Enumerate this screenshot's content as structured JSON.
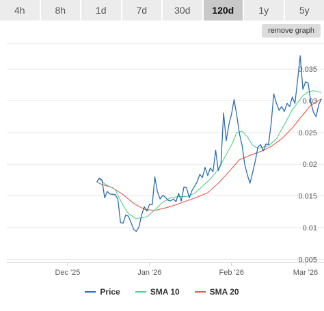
{
  "range_tabs": [
    {
      "label": "4h",
      "active": false
    },
    {
      "label": "8h",
      "active": false
    },
    {
      "label": "1d",
      "active": false
    },
    {
      "label": "7d",
      "active": false
    },
    {
      "label": "30d",
      "active": false
    },
    {
      "label": "120d",
      "active": true
    },
    {
      "label": "1y",
      "active": false
    },
    {
      "label": "5y",
      "active": false
    }
  ],
  "remove_graph_label": "remove graph",
  "colors": {
    "price": "#2b6cb0",
    "sma10": "#4cd08a",
    "sma20": "#e8554a",
    "grid": "#e6e6e6"
  },
  "chart_data": {
    "type": "line",
    "x_ticks": [
      "Dec '25",
      "Jan '26",
      "Feb '26",
      "Mar '26"
    ],
    "x_tick_dates": [
      "2025-12-01",
      "2026-01-01",
      "2026-02-01",
      "2026-03-01"
    ],
    "xlim": [
      "2025-11-08",
      "2026-03-08"
    ],
    "y_ticks": [
      "0.005",
      "0.01",
      "0.015",
      "0.02",
      "0.025",
      "0.03",
      "0.035"
    ],
    "ylim": [
      0.0045,
      0.039
    ],
    "grid": true,
    "legend_position": "bottom",
    "series": [
      {
        "name": "Price",
        "color_key": "price",
        "points": [
          [
            "2025-12-12",
            0.0172
          ],
          [
            "2025-12-13",
            0.0178
          ],
          [
            "2025-12-14",
            0.0175
          ],
          [
            "2025-12-15",
            0.0147
          ],
          [
            "2025-12-16",
            0.0157
          ],
          [
            "2025-12-17",
            0.0153
          ],
          [
            "2025-12-19",
            0.0152
          ],
          [
            "2025-12-20",
            0.0145
          ],
          [
            "2025-12-21",
            0.0108
          ],
          [
            "2025-12-22",
            0.0107
          ],
          [
            "2025-12-23",
            0.012
          ],
          [
            "2025-12-24",
            0.0118
          ],
          [
            "2025-12-25",
            0.0108
          ],
          [
            "2025-12-26",
            0.0097
          ],
          [
            "2025-12-27",
            0.0094
          ],
          [
            "2025-12-28",
            0.0101
          ],
          [
            "2025-12-29",
            0.012
          ],
          [
            "2025-12-30",
            0.0133
          ],
          [
            "2025-12-31",
            0.0126
          ],
          [
            "2026-01-01",
            0.0137
          ],
          [
            "2026-01-02",
            0.0136
          ],
          [
            "2026-01-03",
            0.018
          ],
          [
            "2026-01-04",
            0.0156
          ],
          [
            "2026-01-05",
            0.0145
          ],
          [
            "2026-01-06",
            0.0151
          ],
          [
            "2026-01-07",
            0.0148
          ],
          [
            "2026-01-08",
            0.0143
          ],
          [
            "2026-01-09",
            0.0142
          ],
          [
            "2026-01-10",
            0.0145
          ],
          [
            "2026-01-11",
            0.0141
          ],
          [
            "2026-01-12",
            0.0154
          ],
          [
            "2026-01-13",
            0.0142
          ],
          [
            "2026-01-14",
            0.0164
          ],
          [
            "2026-01-15",
            0.0163
          ],
          [
            "2026-01-16",
            0.0147
          ],
          [
            "2026-01-17",
            0.0158
          ],
          [
            "2026-01-19",
            0.0172
          ],
          [
            "2026-01-20",
            0.0184
          ],
          [
            "2026-01-21",
            0.0179
          ],
          [
            "2026-01-22",
            0.0195
          ],
          [
            "2026-01-23",
            0.0182
          ],
          [
            "2026-01-24",
            0.0194
          ],
          [
            "2026-01-25",
            0.0188
          ],
          [
            "2026-01-26",
            0.0222
          ],
          [
            "2026-01-27",
            0.019
          ],
          [
            "2026-01-28",
            0.02
          ],
          [
            "2026-01-29",
            0.0281
          ],
          [
            "2026-01-30",
            0.0237
          ],
          [
            "2026-01-31",
            0.0262
          ],
          [
            "2026-02-01",
            0.0279
          ],
          [
            "2026-02-02",
            0.0302
          ],
          [
            "2026-02-03",
            0.0277
          ],
          [
            "2026-02-04",
            0.0248
          ],
          [
            "2026-02-05",
            0.023
          ],
          [
            "2026-02-06",
            0.02
          ],
          [
            "2026-02-07",
            0.0183
          ],
          [
            "2026-02-08",
            0.017
          ],
          [
            "2026-02-09",
            0.0187
          ],
          [
            "2026-02-10",
            0.0205
          ],
          [
            "2026-02-11",
            0.0227
          ],
          [
            "2026-02-12",
            0.0231
          ],
          [
            "2026-02-13",
            0.0221
          ],
          [
            "2026-02-14",
            0.0232
          ],
          [
            "2026-02-15",
            0.0231
          ],
          [
            "2026-02-16",
            0.0264
          ],
          [
            "2026-02-17",
            0.0311
          ],
          [
            "2026-02-18",
            0.0296
          ],
          [
            "2026-02-19",
            0.0285
          ],
          [
            "2026-02-20",
            0.0291
          ],
          [
            "2026-02-21",
            0.0283
          ],
          [
            "2026-02-22",
            0.0296
          ],
          [
            "2026-02-23",
            0.0291
          ],
          [
            "2026-02-24",
            0.0306
          ],
          [
            "2026-02-25",
            0.0296
          ],
          [
            "2026-02-26",
            0.0332
          ],
          [
            "2026-02-27",
            0.0371
          ],
          [
            "2026-02-28",
            0.0318
          ],
          [
            "2026-03-01",
            0.033
          ],
          [
            "2026-03-02",
            0.0328
          ],
          [
            "2026-03-03",
            0.0298
          ],
          [
            "2026-03-04",
            0.0282
          ],
          [
            "2026-03-05",
            0.0275
          ],
          [
            "2026-03-06",
            0.0294
          ],
          [
            "2026-03-07",
            0.0303
          ]
        ]
      },
      {
        "name": "SMA 10",
        "color_key": "sma10",
        "points": [
          [
            "2025-12-12",
            0.0172
          ],
          [
            "2025-12-13",
            0.0177
          ],
          [
            "2025-12-15",
            0.0169
          ],
          [
            "2025-12-19",
            0.016
          ],
          [
            "2025-12-22",
            0.0135
          ],
          [
            "2025-12-24",
            0.0122
          ],
          [
            "2025-12-27",
            0.0114
          ],
          [
            "2025-12-31",
            0.0117
          ],
          [
            "2026-01-03",
            0.0128
          ],
          [
            "2026-01-06",
            0.014
          ],
          [
            "2026-01-09",
            0.0147
          ],
          [
            "2026-01-12",
            0.0149
          ],
          [
            "2026-01-15",
            0.0149
          ],
          [
            "2026-01-18",
            0.0154
          ],
          [
            "2026-01-21",
            0.0165
          ],
          [
            "2026-01-24",
            0.0177
          ],
          [
            "2026-01-27",
            0.0192
          ],
          [
            "2026-01-30",
            0.0215
          ],
          [
            "2026-02-01",
            0.023
          ],
          [
            "2026-02-03",
            0.025
          ],
          [
            "2026-02-05",
            0.0252
          ],
          [
            "2026-02-07",
            0.0243
          ],
          [
            "2026-02-09",
            0.023
          ],
          [
            "2026-02-11",
            0.0225
          ],
          [
            "2026-02-13",
            0.0227
          ],
          [
            "2026-02-15",
            0.0229
          ],
          [
            "2026-02-18",
            0.024
          ],
          [
            "2026-02-20",
            0.0255
          ],
          [
            "2026-02-22",
            0.027
          ],
          [
            "2026-02-24",
            0.0286
          ],
          [
            "2026-02-26",
            0.0297
          ],
          [
            "2026-02-28",
            0.0308
          ],
          [
            "2026-03-02",
            0.0314
          ],
          [
            "2026-03-04",
            0.0316
          ],
          [
            "2026-03-07",
            0.0313
          ]
        ]
      },
      {
        "name": "SMA 20",
        "color_key": "sma20",
        "points": [
          [
            "2025-12-12",
            0.0172
          ],
          [
            "2025-12-14",
            0.0168
          ],
          [
            "2025-12-18",
            0.0163
          ],
          [
            "2025-12-22",
            0.0152
          ],
          [
            "2025-12-26",
            0.0138
          ],
          [
            "2025-12-30",
            0.0129
          ],
          [
            "2026-01-03",
            0.0127
          ],
          [
            "2026-01-07",
            0.0131
          ],
          [
            "2026-01-11",
            0.0136
          ],
          [
            "2026-01-15",
            0.0142
          ],
          [
            "2026-01-19",
            0.0148
          ],
          [
            "2026-01-23",
            0.0155
          ],
          [
            "2026-01-27",
            0.017
          ],
          [
            "2026-01-31",
            0.0188
          ],
          [
            "2026-02-04",
            0.0207
          ],
          [
            "2026-02-08",
            0.0214
          ],
          [
            "2026-02-12",
            0.022
          ],
          [
            "2026-02-16",
            0.0228
          ],
          [
            "2026-02-20",
            0.024
          ],
          [
            "2026-02-24",
            0.0257
          ],
          [
            "2026-02-28",
            0.0278
          ],
          [
            "2026-03-03",
            0.0293
          ],
          [
            "2026-03-07",
            0.0303
          ]
        ]
      }
    ]
  }
}
